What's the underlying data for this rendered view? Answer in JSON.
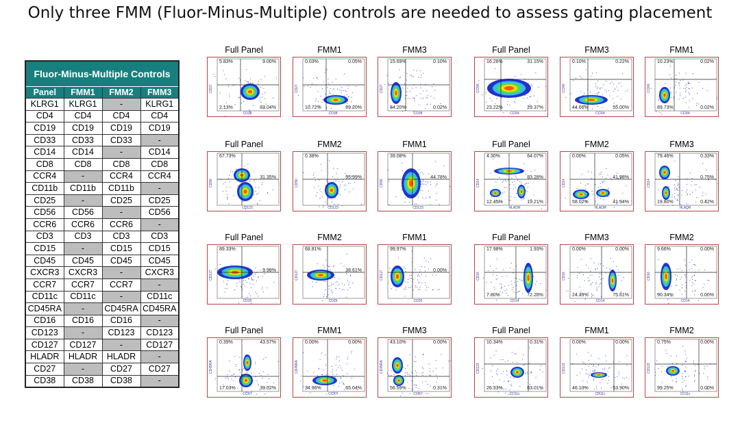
{
  "title": "Only three FMM (Fluor-Minus-Multiple) controls are needed to assess gating placement",
  "table": {
    "caption": "Fluor-Minus-Multiple Controls",
    "headers": [
      "Panel",
      "FMM1",
      "FMM2",
      "FMM3"
    ],
    "rows": [
      [
        "KLRG1",
        "KLRG1",
        "-",
        "KLRG1"
      ],
      [
        "CD4",
        "CD4",
        "CD4",
        "CD4"
      ],
      [
        "CD19",
        "CD19",
        "CD19",
        "CD19"
      ],
      [
        "CD33",
        "CD33",
        "CD33",
        "-"
      ],
      [
        "CD14",
        "CD14",
        "-",
        "CD14"
      ],
      [
        "CD8",
        "CD8",
        "CD8",
        "CD8"
      ],
      [
        "CCR4",
        "-",
        "CCR4",
        "CCR4"
      ],
      [
        "CD11b",
        "CD11b",
        "CD11b",
        "-"
      ],
      [
        "CD25",
        "-",
        "CD25",
        "CD25"
      ],
      [
        "CD56",
        "CD56",
        "-",
        "CD56"
      ],
      [
        "CCR6",
        "CCR6",
        "CCR6",
        "-"
      ],
      [
        "CD3",
        "CD3",
        "CD3",
        "CD3"
      ],
      [
        "CD15",
        "-",
        "CD15",
        "CD15"
      ],
      [
        "CD45",
        "CD45",
        "CD45",
        "CD45"
      ],
      [
        "CXCR3",
        "CXCR3",
        "-",
        "CXCR3"
      ],
      [
        "CCR7",
        "CCR7",
        "CCR7",
        "-"
      ],
      [
        "CD11c",
        "CD11c",
        "-",
        "CD11c"
      ],
      [
        "CD45RA",
        "-",
        "CD45RA",
        "CD45RA"
      ],
      [
        "CD16",
        "CD16",
        "CD16",
        "-"
      ],
      [
        "CD123",
        "-",
        "CD123",
        "CD123"
      ],
      [
        "CD127",
        "CD127",
        "-",
        "CD127"
      ],
      [
        "HLADR",
        "HLADR",
        "HLADR",
        "-"
      ],
      [
        "CD27",
        "-",
        "CD27",
        "CD27"
      ],
      [
        "CD38",
        "CD38",
        "CD38",
        "-"
      ]
    ]
  },
  "plots": [
    {
      "title": "Full Panel",
      "x": "CD38",
      "y": "CD27",
      "tl": "5.83%",
      "tr": "9.00%",
      "bl": "2.13%",
      "br": "83.04%",
      "mr": ""
    },
    {
      "title": "FMM1",
      "x": "CD38",
      "y": "CD27",
      "tl": "0.03%",
      "tr": "0.05%",
      "bl": "10.72%",
      "br": "89.20%",
      "mr": ""
    },
    {
      "title": "FMM3",
      "x": "CD38",
      "y": "CD27",
      "tl": "15.69%",
      "tr": "0.10%",
      "bl": "84.20%",
      "br": "0.02%",
      "mr": ""
    },
    {
      "title": "Full Panel",
      "x": "CCR4",
      "y": "CCR6",
      "tl": "16.26%",
      "tr": "31.15%",
      "bl": "23.22%",
      "br": "29.37%",
      "mr": ""
    },
    {
      "title": "FMM3",
      "x": "CCR4",
      "y": "CCR6",
      "tl": "0.10%",
      "tr": "0.22%",
      "bl": "44.66%",
      "br": "55.00%",
      "mr": ""
    },
    {
      "title": "FMM1",
      "x": "CCR4",
      "y": "CCR6",
      "tl": "10.23%",
      "tr": "0.02%",
      "bl": "89.73%",
      "br": "0.02%",
      "mr": ""
    },
    {
      "title": "Full Panel",
      "x": "CD123",
      "y": "CD56",
      "tl": "67.73%",
      "tr": "",
      "bl": "",
      "br": "",
      "mr": "31.35%"
    },
    {
      "title": "FMM2",
      "x": "CD123",
      "y": "CD56",
      "tl": "0.38%",
      "tr": "",
      "bl": "",
      "br": "",
      "mr": "95.99%"
    },
    {
      "title": "FMM1",
      "x": "CD123",
      "y": "CD56",
      "tl": "39.08%",
      "tr": "",
      "bl": "",
      "br": "",
      "mr": "44.78%"
    },
    {
      "title": "Full Panel",
      "x": "HLADR",
      "y": "CD14",
      "tl": "4.30%",
      "tr": "64.07%",
      "bl": "12.45%",
      "br": "19.21%",
      "mr": "83.28%"
    },
    {
      "title": "FMM2",
      "x": "HLADR",
      "y": "CD14",
      "tl": "0.00%",
      "tr": "0.05%",
      "bl": "58.02%",
      "br": "41.94%",
      "mr": "41.98%"
    },
    {
      "title": "FMM3",
      "x": "HLADR",
      "y": "CD14",
      "tl": "79.46%",
      "tr": "0.33%",
      "bl": "19.80%",
      "br": "0.42%",
      "mr": "0.75%"
    },
    {
      "title": "Full Panel",
      "x": "CD25",
      "y": "CD127",
      "tl": "89.33%",
      "tr": "",
      "bl": "",
      "br": "",
      "mr": "9.99%"
    },
    {
      "title": "FMM2",
      "x": "CD25",
      "y": "CD127",
      "tl": "68.81%",
      "tr": "",
      "bl": "",
      "br": "",
      "mr": "28.61%"
    },
    {
      "title": "FMM1",
      "x": "CD25",
      "y": "CD127",
      "tl": "99.97%",
      "tr": "",
      "bl": "",
      "br": "",
      "mr": "0.00%"
    },
    {
      "title": "Full Panel",
      "x": "CD14",
      "y": "CD16",
      "tl": "17.98%",
      "tr": "1.93%",
      "bl": "7.80%",
      "br": "72.28%",
      "mr": ""
    },
    {
      "title": "FMM3",
      "x": "CD14",
      "y": "CD16",
      "tl": "0.00%",
      "tr": "0.00%",
      "bl": "24.39%",
      "br": "75.61%",
      "mr": ""
    },
    {
      "title": "FMM2",
      "x": "CD14",
      "y": "CD16",
      "tl": "9.66%",
      "tr": "0.00%",
      "bl": "90.34%",
      "br": "0.00%",
      "mr": ""
    },
    {
      "title": "Full Panel",
      "x": "CCR7",
      "y": "CD45RA",
      "tl": "0.39%",
      "tr": "43.57%",
      "bl": "17.03%",
      "br": "39.02%",
      "mr": ""
    },
    {
      "title": "FMM1",
      "x": "CCR7",
      "y": "CD45RA",
      "tl": "0.00%",
      "tr": "0.00%",
      "bl": "34.96%",
      "br": "65.04%",
      "mr": ""
    },
    {
      "title": "FMM3",
      "x": "CCR7",
      "y": "CD45RA",
      "tl": "43.10%",
      "tr": "0.00%",
      "bl": "56.59%",
      "br": "0.31%",
      "mr": ""
    },
    {
      "title": "Full Panel",
      "x": "CD11c",
      "y": "CD123",
      "tl": "10.34%",
      "tr": "0.31%",
      "bl": "26.33%",
      "br": "63.01%",
      "mr": ""
    },
    {
      "title": "FMM1",
      "x": "CD11c",
      "y": "CD123",
      "tl": "0.00%",
      "tr": "0.00%",
      "bl": "46.10%",
      "br": "53.90%",
      "mr": ""
    },
    {
      "title": "FMM2",
      "x": "CD11c",
      "y": "CD123",
      "tl": "0.75%",
      "tr": "0.00%",
      "bl": "99.25%",
      "br": "0.00%",
      "mr": ""
    }
  ]
}
